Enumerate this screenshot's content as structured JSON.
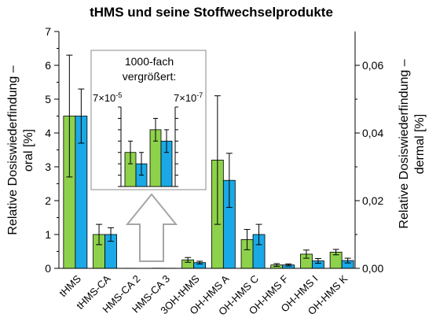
{
  "chart_data": {
    "type": "bar",
    "title": "tHMS und seine Stoffwechselprodukte",
    "categories": [
      "tHMS",
      "tHMS-CA",
      "HMS-CA 2",
      "HMS-CA 3",
      "3OH-tHMS",
      "OH-HMS A",
      "OH-HMS C",
      "OH-HMS F",
      "OH-HMS I",
      "OH-HMS K"
    ],
    "ylabel_left": "Relative Dosiswiederfindung – oral [%]",
    "ylabel_right": "Relative Dosiswiederfindung – dermal [%]",
    "ylim_left": [
      0,
      7
    ],
    "yticks_left": [
      "0",
      "1",
      "2",
      "3",
      "4",
      "5",
      "6",
      "7"
    ],
    "ylim_right": [
      0,
      0.07
    ],
    "yticks_right": [
      "0,00",
      "0,02",
      "0,04",
      "0,06"
    ],
    "grid": false,
    "colors": {
      "oral": "#8ed14b",
      "dermal": "#1aa9e6"
    },
    "series": [
      {
        "axis": "left",
        "values": [
          4.5,
          1.0,
          0.003,
          0.005,
          0.25,
          3.2,
          0.85,
          0.1,
          0.42,
          0.48
        ],
        "errors": [
          1.8,
          0.3,
          0.001,
          0.001,
          0.07,
          1.9,
          0.3,
          0.04,
          0.12,
          0.08
        ]
      },
      {
        "axis": "right",
        "values": [
          0.045,
          0.01,
          2e-05,
          4e-05,
          0.0017,
          0.026,
          0.01,
          0.001,
          0.0022,
          0.0023
        ],
        "errors": [
          0.008,
          0.002,
          1e-05,
          1e-05,
          0.0004,
          0.008,
          0.003,
          0.0003,
          0.0007,
          0.0007
        ]
      }
    ],
    "inset": {
      "label_line1": "1000-fach",
      "label_line2": "vergrößert:",
      "left_scale_label": "7×10",
      "left_scale_exp": "-5",
      "right_scale_label": "7×10",
      "right_scale_exp": "-7",
      "magnified_categories": [
        "HMS-CA 2",
        "HMS-CA 3"
      ]
    }
  }
}
